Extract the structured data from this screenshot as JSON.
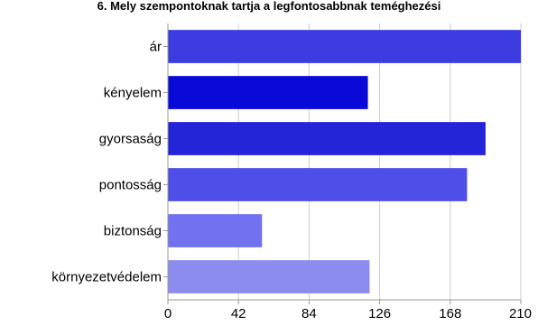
{
  "chart_data": {
    "type": "bar",
    "orientation": "horizontal",
    "title": "6. Mely szempontoknak tartja a legfontosabbnak teméghezési",
    "categories": [
      "ár",
      "kényelem",
      "gyorsaság",
      "pontosság",
      "biztonság",
      "környezetvédelem"
    ],
    "values": [
      210,
      119,
      189,
      178,
      56,
      120
    ],
    "bar_colors": [
      "#3c3ce0",
      "#0a0ad8",
      "#2424d8",
      "#4e4ee8",
      "#7272f0",
      "#8c8cf0"
    ],
    "xlim": [
      0,
      210
    ],
    "xticks": [
      0,
      42,
      84,
      126,
      168,
      210
    ],
    "xlabel": "",
    "ylabel": "",
    "grid": true
  }
}
